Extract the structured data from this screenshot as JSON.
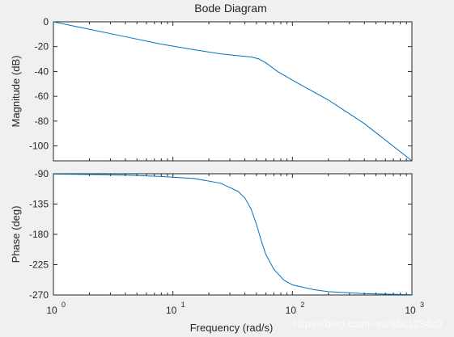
{
  "chart_data": {
    "type": "line",
    "title": "Bode Diagram",
    "xlabel": "Frequency  (rad/s)",
    "x_scale": "log",
    "xlim": [
      1,
      1000
    ],
    "x_tick_labels": [
      {
        "base": "10",
        "exp": "0"
      },
      {
        "base": "10",
        "exp": "1"
      },
      {
        "base": "10",
        "exp": "2"
      },
      {
        "base": "10",
        "exp": "3"
      }
    ],
    "line_color": "#0072bd",
    "grid": false,
    "subplots": [
      {
        "ylabel": "Magnitude (dB)",
        "ylim": [
          -112,
          0
        ],
        "y_ticks": [
          0,
          -20,
          -40,
          -60,
          -80,
          -100
        ],
        "y_tick_labels": [
          "0",
          "-20",
          "-40",
          "-60",
          "-80",
          "-100"
        ],
        "series": [
          {
            "x": [
              1,
              2,
              4,
              8,
              15,
              25,
              35,
              45,
              52,
              60,
              75,
              100,
              150,
              200,
              400,
              1000
            ],
            "y": [
              0,
              -6,
              -12,
              -18,
              -22.5,
              -25.8,
              -27.3,
              -28.3,
              -29.8,
              -33,
              -40,
              -47,
              -56.4,
              -63,
              -82,
              -112
            ]
          }
        ]
      },
      {
        "ylabel": "Phase (deg)",
        "ylim": [
          -270,
          -90
        ],
        "y_ticks": [
          -90,
          -135,
          -180,
          -225,
          -270
        ],
        "y_tick_labels": [
          "-90",
          "-135",
          "-180",
          "-225",
          "-270"
        ],
        "series": [
          {
            "x": [
              1,
              2,
              4,
              8,
              15,
              25,
              35,
              40,
              45,
              50,
              55,
              60,
              70,
              85,
              100,
              150,
              200,
              400,
              1000
            ],
            "y": [
              -90.5,
              -91,
              -92,
              -94,
              -97,
              -104,
              -116,
              -126,
              -142,
              -165,
              -190,
              -210,
              -232,
              -248,
              -255,
              -262,
              -265,
              -268,
              -269.5
            ]
          }
        ]
      }
    ]
  },
  "watermark": "https://blog.csdn.net/abc1234z0"
}
